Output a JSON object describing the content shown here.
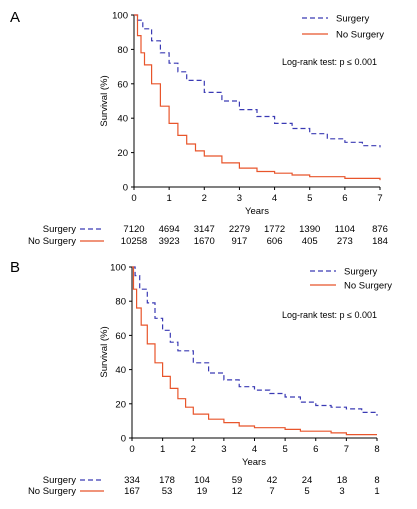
{
  "chart_data": [
    {
      "panel_label": "A",
      "type": "line",
      "title": "",
      "xlabel": "Years",
      "ylabel": "Survival (%)",
      "xlim": [
        0,
        7
      ],
      "ylim": [
        0,
        100
      ],
      "x_ticks": [
        0,
        1,
        2,
        3,
        4,
        5,
        6,
        7
      ],
      "y_ticks": [
        0,
        20,
        40,
        60,
        80,
        100
      ],
      "grid": false,
      "legend_position": "top-right",
      "annotation": "Log-rank test: p ≤ 0.001",
      "series": [
        {
          "name": "Surgery",
          "color": "#3a3ab4",
          "style": "dashed",
          "x": [
            0,
            0.1,
            0.25,
            0.5,
            0.75,
            1,
            1.25,
            1.5,
            2,
            2.5,
            3,
            3.5,
            4,
            4.5,
            5,
            5.5,
            6,
            6.5,
            7
          ],
          "y": [
            100,
            97,
            92,
            85,
            78,
            72,
            67,
            62,
            55,
            50,
            45,
            41,
            37,
            34,
            31,
            28,
            26,
            24,
            23
          ]
        },
        {
          "name": "No Surgery",
          "color": "#e8552b",
          "style": "solid",
          "x": [
            0,
            0.1,
            0.2,
            0.3,
            0.5,
            0.75,
            1,
            1.25,
            1.5,
            1.75,
            2,
            2.5,
            3,
            3.5,
            4,
            4.5,
            5,
            6,
            7
          ],
          "y": [
            100,
            88,
            78,
            71,
            60,
            47,
            37,
            30,
            25,
            21,
            18,
            14,
            11,
            9,
            8,
            7,
            6,
            5,
            4
          ]
        }
      ],
      "risk_table": {
        "rows": [
          {
            "label": "Surgery",
            "values": [
              "7120",
              "4694",
              "3147",
              "2279",
              "1772",
              "1390",
              "1104",
              "876"
            ]
          },
          {
            "label": "No Surgery",
            "values": [
              "10258",
              "3923",
              "1670",
              "917",
              "606",
              "405",
              "273",
              "184"
            ]
          }
        ]
      }
    },
    {
      "panel_label": "B",
      "type": "line",
      "title": "",
      "xlabel": "Years",
      "ylabel": "Survival (%)",
      "xlim": [
        0,
        8
      ],
      "ylim": [
        0,
        100
      ],
      "x_ticks": [
        0,
        1,
        2,
        3,
        4,
        5,
        6,
        7,
        8
      ],
      "y_ticks": [
        0,
        20,
        40,
        60,
        80,
        100
      ],
      "grid": false,
      "legend_position": "top-right",
      "annotation": "Log-rank test: p ≤ 0.001",
      "series": [
        {
          "name": "Surgery",
          "color": "#3a3ab4",
          "style": "dashed",
          "x": [
            0,
            0.1,
            0.25,
            0.5,
            0.75,
            1,
            1.25,
            1.5,
            2,
            2.5,
            3,
            3.5,
            4,
            4.5,
            5,
            5.5,
            6,
            6.5,
            7,
            7.5,
            8
          ],
          "y": [
            100,
            95,
            87,
            79,
            70,
            63,
            56,
            51,
            44,
            38,
            34,
            30,
            28,
            26,
            24,
            21,
            19,
            18,
            17,
            15,
            13
          ]
        },
        {
          "name": "No Surgery",
          "color": "#e8552b",
          "style": "solid",
          "x": [
            0,
            0.05,
            0.15,
            0.3,
            0.5,
            0.75,
            1,
            1.25,
            1.5,
            1.75,
            2,
            2.5,
            3,
            3.5,
            4,
            4.5,
            5,
            5.5,
            6,
            6.5,
            7,
            8
          ],
          "y": [
            100,
            87,
            76,
            66,
            55,
            44,
            36,
            29,
            23,
            18,
            14,
            11,
            9,
            7,
            6,
            6,
            5,
            4,
            4,
            3,
            2,
            2
          ]
        }
      ],
      "risk_table": {
        "rows": [
          {
            "label": "Surgery",
            "values": [
              "334",
              "178",
              "104",
              "59",
              "42",
              "24",
              "18",
              "8"
            ]
          },
          {
            "label": "No Surgery",
            "values": [
              "167",
              "53",
              "19",
              "12",
              "7",
              "5",
              "3",
              "1"
            ]
          }
        ]
      }
    }
  ]
}
